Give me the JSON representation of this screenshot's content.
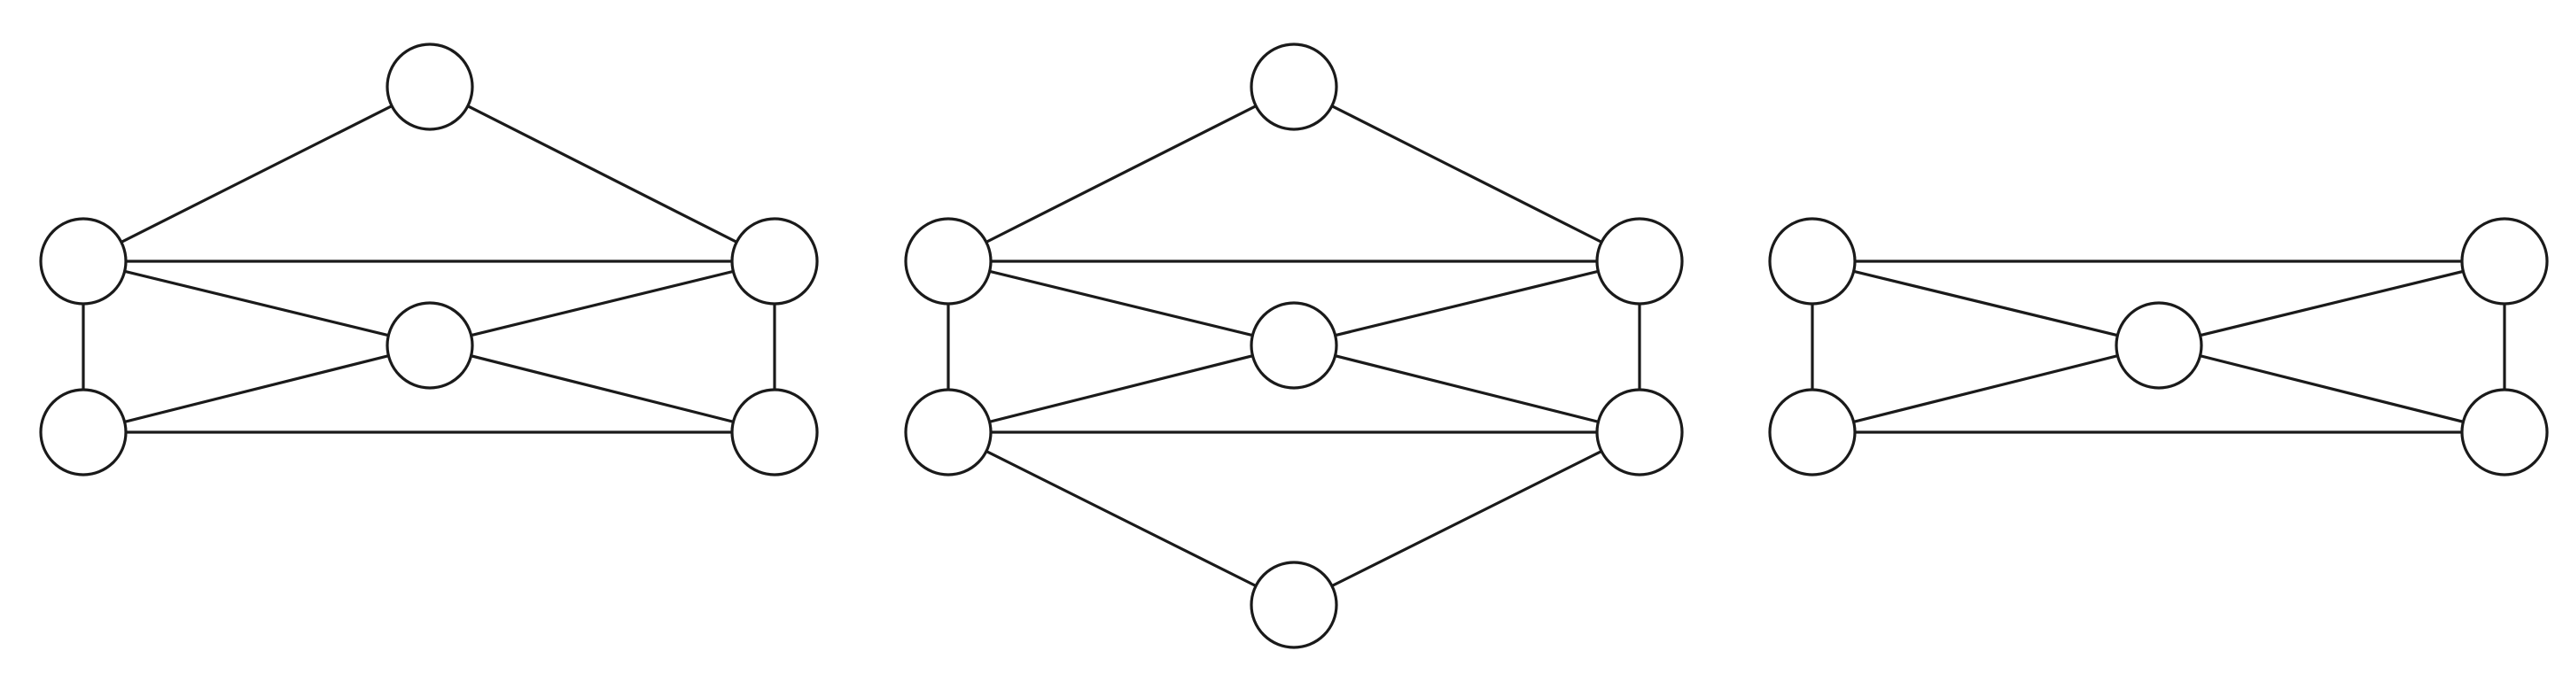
{
  "colors": {
    "background": "#ffffff",
    "stroke": "#1a1a1a",
    "node_fill": "#ffffff"
  },
  "graphs": [
    {
      "name": "graph-1",
      "nodes": [
        "top",
        "upper-left",
        "upper-right",
        "center",
        "lower-left",
        "lower-right"
      ],
      "edges": [
        [
          "top",
          "upper-left"
        ],
        [
          "top",
          "upper-right"
        ],
        [
          "upper-left",
          "upper-right"
        ],
        [
          "upper-left",
          "center"
        ],
        [
          "upper-right",
          "center"
        ],
        [
          "upper-left",
          "lower-left"
        ],
        [
          "upper-right",
          "lower-right"
        ],
        [
          "center",
          "lower-left"
        ],
        [
          "center",
          "lower-right"
        ],
        [
          "lower-left",
          "lower-right"
        ]
      ]
    },
    {
      "name": "graph-2",
      "nodes": [
        "top",
        "upper-left",
        "upper-right",
        "center",
        "lower-left",
        "lower-right",
        "bottom"
      ],
      "edges": [
        [
          "top",
          "upper-left"
        ],
        [
          "top",
          "upper-right"
        ],
        [
          "upper-left",
          "upper-right"
        ],
        [
          "upper-left",
          "center"
        ],
        [
          "upper-right",
          "center"
        ],
        [
          "upper-left",
          "lower-left"
        ],
        [
          "upper-right",
          "lower-right"
        ],
        [
          "center",
          "lower-left"
        ],
        [
          "center",
          "lower-right"
        ],
        [
          "lower-left",
          "lower-right"
        ],
        [
          "lower-left",
          "bottom"
        ],
        [
          "lower-right",
          "bottom"
        ]
      ]
    },
    {
      "name": "graph-3",
      "nodes": [
        "upper-left",
        "upper-right",
        "center",
        "lower-left",
        "lower-right"
      ],
      "edges": [
        [
          "upper-left",
          "upper-right"
        ],
        [
          "upper-left",
          "center"
        ],
        [
          "upper-right",
          "center"
        ],
        [
          "upper-left",
          "lower-left"
        ],
        [
          "upper-right",
          "lower-right"
        ],
        [
          "center",
          "lower-left"
        ],
        [
          "center",
          "lower-right"
        ],
        [
          "lower-left",
          "lower-right"
        ]
      ]
    }
  ]
}
